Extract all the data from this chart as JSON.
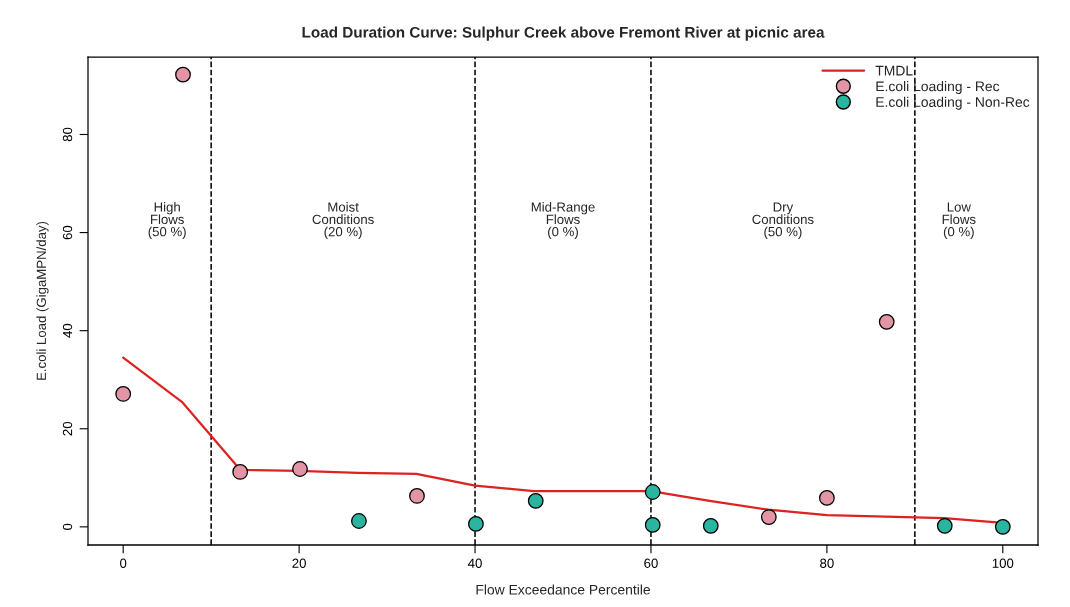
{
  "chart_data": {
    "type": "scatter",
    "title": "Load Duration Curve: Sulphur Creek above Fremont River at picnic area",
    "xlabel": "Flow Exceedance Percentile",
    "ylabel": "E.coli Load (GigaMPN/day)",
    "xlim": [
      -4,
      104
    ],
    "ylim": [
      -3.7,
      95.8
    ],
    "xticks": [
      0,
      20,
      40,
      60,
      80,
      100
    ],
    "yticks": [
      0,
      20,
      40,
      60,
      80
    ],
    "grid": false,
    "legend": "top right",
    "series": [
      {
        "name": "TMDL",
        "type": "line",
        "color": "#dd2222",
        "marker": "none",
        "line_style": "solid",
        "x": [
          0,
          6.67,
          13.33,
          20,
          26.67,
          33.33,
          40,
          46.67,
          53.33,
          60,
          66.67,
          73.33,
          80,
          86.67,
          93.33,
          100
        ],
        "values": [
          34.5,
          25.5,
          11.6,
          11.4,
          11,
          10.8,
          8.4,
          7.3,
          7.3,
          7.3,
          5.3,
          3.5,
          2.4,
          2.1,
          1.8,
          0.8
        ]
      },
      {
        "name": "E.coli Loading - Rec",
        "marker": "circle",
        "color": "#e395a6",
        "x": [
          0,
          6.8,
          13.3,
          20.1,
          33.4,
          73.4,
          80,
          86.8
        ],
        "values": [
          27.1,
          92.2,
          11.2,
          11.8,
          6.3,
          2.0,
          5.9,
          41.8
        ]
      },
      {
        "name": "E.coli Loading - Non-Rec",
        "marker": "circle",
        "color": "#2ab5a0",
        "x": [
          26.8,
          40.1,
          46.9,
          60.2,
          60.2,
          66.8,
          93.4,
          100
        ],
        "values": [
          1.2,
          0.6,
          5.3,
          7.1,
          0.4,
          0.2,
          0.2,
          0.0
        ]
      }
    ],
    "ref_lines": [
      {
        "axis": "x",
        "value": 10,
        "color": "#000000",
        "line_style": "dashed"
      },
      {
        "axis": "x",
        "value": 40,
        "color": "#000000",
        "line_style": "dashed"
      },
      {
        "axis": "x",
        "value": 60,
        "color": "#000000",
        "line_style": "dashed"
      },
      {
        "axis": "x",
        "value": 90,
        "color": "#000000",
        "line_style": "dashed"
      }
    ],
    "annotations": [
      "High\nFlows\n(50 %)",
      "Moist\nConditions\n(20 %)",
      "Mid-Range\nFlows\n(0 %)",
      "Dry\nConditions\n(50 %)",
      "Low\nFlows\n(0 %)"
    ]
  }
}
